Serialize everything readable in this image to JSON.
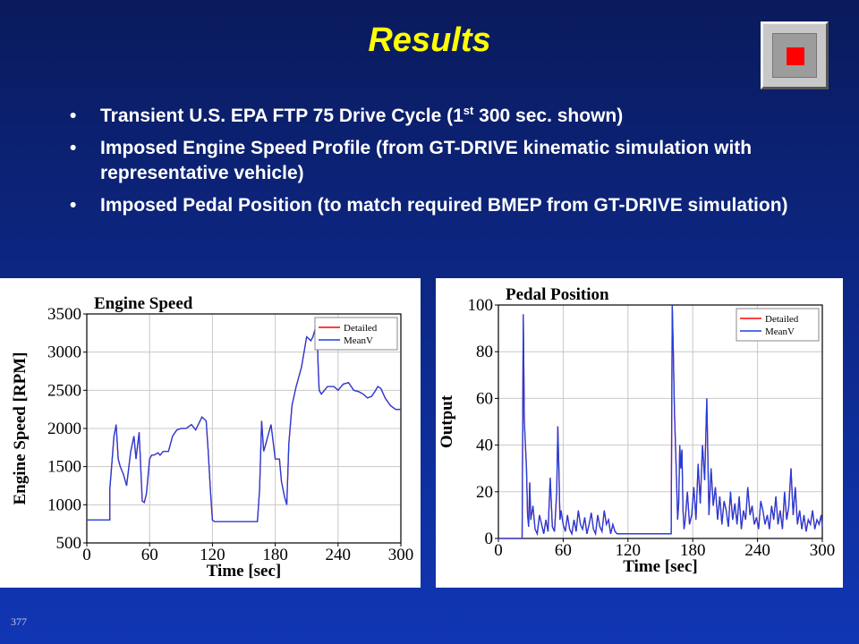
{
  "slide": {
    "title": "Results",
    "page_number": "377",
    "bullets": [
      {
        "pre": "Transient U.S. EPA FTP 75 Drive Cycle (1",
        "sup": "st",
        "post": " 300 sec. shown)"
      },
      {
        "pre": "Imposed Engine Speed Profile (from GT-DRIVE kinematic simulation with representative vehicle)",
        "sup": "",
        "post": ""
      },
      {
        "pre": "Imposed Pedal Position (to match required BMEP from GT-DRIVE simulation)",
        "sup": "",
        "post": ""
      }
    ]
  },
  "nav": {
    "icon": "stop-icon",
    "accent": "#ff0000"
  },
  "chart_data": [
    {
      "type": "line",
      "title": "Engine Speed",
      "xlabel": "Time [sec]",
      "ylabel": "Engine Speed [RPM]",
      "xlim": [
        0,
        300
      ],
      "ylim": [
        500,
        3500
      ],
      "xticks": [
        0,
        60,
        120,
        180,
        240,
        300
      ],
      "yticks": [
        500,
        1000,
        1500,
        2000,
        2500,
        3000,
        3500
      ],
      "grid": true,
      "legend": "top-right",
      "series": [
        {
          "name": "Detailed",
          "color": "#ff0000",
          "x": [
            0,
            22,
            22,
            26,
            28,
            30,
            32,
            35,
            38,
            42,
            45,
            47,
            50,
            53,
            55,
            57,
            60,
            62,
            64,
            68,
            70,
            73,
            78,
            82,
            86,
            90,
            95,
            100,
            104,
            110,
            114,
            116,
            118,
            120,
            122,
            125,
            128,
            132,
            140,
            150,
            158,
            163,
            165,
            167,
            169,
            171,
            173,
            176,
            180,
            184,
            186,
            189,
            191,
            193,
            196,
            200,
            205,
            210,
            214,
            216,
            218,
            220,
            221,
            222,
            224,
            230,
            236,
            240,
            245,
            250,
            255,
            260,
            264,
            268,
            272,
            275,
            278,
            281,
            285,
            290,
            295,
            300
          ],
          "values": [
            800,
            800,
            1200,
            1900,
            2050,
            1600,
            1500,
            1400,
            1250,
            1700,
            1900,
            1600,
            1950,
            1050,
            1030,
            1150,
            1600,
            1650,
            1650,
            1680,
            1650,
            1700,
            1700,
            1900,
            1980,
            2000,
            2000,
            2050,
            1980,
            2150,
            2100,
            1700,
            1200,
            800,
            780,
            780,
            780,
            780,
            780,
            780,
            780,
            780,
            1200,
            2100,
            1700,
            1800,
            1900,
            2050,
            1600,
            1600,
            1300,
            1100,
            1000,
            1800,
            2300,
            2550,
            2800,
            3200,
            3150,
            3200,
            3300,
            3300,
            2800,
            2500,
            2450,
            2550,
            2550,
            2500,
            2580,
            2600,
            2500,
            2480,
            2450,
            2400,
            2420,
            2480,
            2550,
            2520,
            2400,
            2300,
            2250,
            2250
          ]
        },
        {
          "name": "MeanV",
          "color": "#1f3fe0",
          "x": [
            0,
            22,
            22,
            26,
            28,
            30,
            32,
            35,
            38,
            42,
            45,
            47,
            50,
            53,
            55,
            57,
            60,
            62,
            64,
            68,
            70,
            73,
            78,
            82,
            86,
            90,
            95,
            100,
            104,
            110,
            114,
            116,
            118,
            120,
            122,
            125,
            128,
            132,
            140,
            150,
            158,
            163,
            165,
            167,
            169,
            171,
            173,
            176,
            180,
            184,
            186,
            189,
            191,
            193,
            196,
            200,
            205,
            210,
            214,
            216,
            218,
            220,
            221,
            222,
            224,
            230,
            236,
            240,
            245,
            250,
            255,
            260,
            264,
            268,
            272,
            275,
            278,
            281,
            285,
            290,
            295,
            300
          ],
          "values": [
            800,
            800,
            1200,
            1900,
            2050,
            1600,
            1500,
            1400,
            1250,
            1700,
            1900,
            1600,
            1950,
            1050,
            1030,
            1150,
            1600,
            1650,
            1650,
            1680,
            1650,
            1700,
            1700,
            1900,
            1980,
            2000,
            2000,
            2050,
            1980,
            2150,
            2100,
            1700,
            1200,
            800,
            780,
            780,
            780,
            780,
            780,
            780,
            780,
            780,
            1200,
            2100,
            1700,
            1800,
            1900,
            2050,
            1600,
            1600,
            1300,
            1100,
            1000,
            1800,
            2300,
            2550,
            2800,
            3200,
            3150,
            3200,
            3300,
            3300,
            2800,
            2500,
            2450,
            2550,
            2550,
            2500,
            2580,
            2600,
            2500,
            2480,
            2450,
            2400,
            2420,
            2480,
            2550,
            2520,
            2400,
            2300,
            2250,
            2250
          ]
        }
      ]
    },
    {
      "type": "line",
      "title": "Pedal Position",
      "xlabel": "Time [sec]",
      "ylabel": "Output",
      "xlim": [
        0,
        300
      ],
      "ylim": [
        0,
        100
      ],
      "xticks": [
        0,
        60,
        120,
        180,
        240,
        300
      ],
      "yticks": [
        0,
        20,
        40,
        60,
        80,
        100
      ],
      "grid": true,
      "legend": "top-right",
      "series": [
        {
          "name": "Detailed",
          "color": "#ff0000",
          "x": [
            0,
            22,
            23,
            24,
            25,
            26,
            27,
            28,
            29,
            30,
            32,
            34,
            36,
            38,
            40,
            42,
            44,
            46,
            48,
            50,
            52,
            54,
            55,
            56,
            57,
            58,
            60,
            62,
            64,
            66,
            68,
            70,
            72,
            74,
            76,
            78,
            80,
            82,
            84,
            86,
            88,
            90,
            92,
            94,
            96,
            98,
            100,
            102,
            104,
            106,
            108,
            110,
            160,
            161,
            162,
            163,
            164,
            165,
            166,
            167,
            168,
            169,
            170,
            171,
            172,
            173,
            175,
            177,
            179,
            181,
            183,
            185,
            187,
            189,
            191,
            193,
            195,
            197,
            199,
            201,
            203,
            205,
            207,
            209,
            211,
            213,
            215,
            217,
            219,
            221,
            223,
            225,
            227,
            229,
            231,
            233,
            235,
            237,
            239,
            241,
            243,
            245,
            247,
            249,
            251,
            253,
            255,
            257,
            259,
            261,
            263,
            265,
            267,
            269,
            271,
            273,
            275,
            277,
            279,
            281,
            283,
            285,
            287,
            289,
            291,
            293,
            295,
            297,
            299,
            300
          ],
          "values": [
            0,
            0,
            96,
            50,
            40,
            30,
            10,
            5,
            24,
            8,
            14,
            4,
            2,
            10,
            6,
            2,
            8,
            3,
            26,
            5,
            3,
            20,
            48,
            30,
            8,
            12,
            6,
            3,
            10,
            4,
            2,
            8,
            3,
            12,
            6,
            4,
            9,
            2,
            6,
            11,
            4,
            2,
            10,
            5,
            3,
            12,
            6,
            8,
            2,
            6,
            3,
            2,
            2,
            100,
            80,
            55,
            40,
            25,
            8,
            15,
            40,
            30,
            38,
            12,
            4,
            8,
            20,
            6,
            10,
            22,
            8,
            32,
            15,
            40,
            25,
            60,
            10,
            30,
            14,
            22,
            8,
            18,
            6,
            16,
            12,
            5,
            20,
            8,
            15,
            6,
            18,
            4,
            12,
            8,
            22,
            10,
            14,
            6,
            9,
            4,
            16,
            12,
            6,
            10,
            4,
            14,
            8,
            18,
            6,
            12,
            4,
            20,
            8,
            14,
            30,
            10,
            22,
            6,
            12,
            4,
            10,
            3,
            8,
            6,
            12,
            4,
            8,
            6,
            10,
            5
          ]
        },
        {
          "name": "MeanV",
          "color": "#1f3fe0",
          "x": [
            0,
            22,
            23,
            24,
            25,
            26,
            27,
            28,
            29,
            30,
            32,
            34,
            36,
            38,
            40,
            42,
            44,
            46,
            48,
            50,
            52,
            54,
            55,
            56,
            57,
            58,
            60,
            62,
            64,
            66,
            68,
            70,
            72,
            74,
            76,
            78,
            80,
            82,
            84,
            86,
            88,
            90,
            92,
            94,
            96,
            98,
            100,
            102,
            104,
            106,
            108,
            110,
            160,
            161,
            162,
            163,
            164,
            165,
            166,
            167,
            168,
            169,
            170,
            171,
            172,
            173,
            175,
            177,
            179,
            181,
            183,
            185,
            187,
            189,
            191,
            193,
            195,
            197,
            199,
            201,
            203,
            205,
            207,
            209,
            211,
            213,
            215,
            217,
            219,
            221,
            223,
            225,
            227,
            229,
            231,
            233,
            235,
            237,
            239,
            241,
            243,
            245,
            247,
            249,
            251,
            253,
            255,
            257,
            259,
            261,
            263,
            265,
            267,
            269,
            271,
            273,
            275,
            277,
            279,
            281,
            283,
            285,
            287,
            289,
            291,
            293,
            295,
            297,
            299,
            300
          ],
          "values": [
            0,
            0,
            96,
            50,
            40,
            30,
            10,
            5,
            24,
            8,
            14,
            4,
            2,
            10,
            6,
            2,
            8,
            3,
            26,
            5,
            3,
            20,
            48,
            30,
            8,
            12,
            6,
            3,
            10,
            4,
            2,
            8,
            3,
            12,
            6,
            4,
            9,
            2,
            6,
            11,
            4,
            2,
            10,
            5,
            3,
            12,
            6,
            8,
            2,
            6,
            3,
            2,
            2,
            100,
            80,
            55,
            40,
            25,
            8,
            15,
            40,
            30,
            38,
            12,
            4,
            8,
            20,
            6,
            10,
            22,
            8,
            32,
            15,
            40,
            25,
            60,
            10,
            30,
            14,
            22,
            8,
            18,
            6,
            16,
            12,
            5,
            20,
            8,
            15,
            6,
            18,
            4,
            12,
            8,
            22,
            10,
            14,
            6,
            9,
            4,
            16,
            12,
            6,
            10,
            4,
            14,
            8,
            18,
            6,
            12,
            4,
            20,
            8,
            14,
            30,
            10,
            22,
            6,
            12,
            4,
            10,
            3,
            8,
            6,
            12,
            4,
            8,
            6,
            10,
            5
          ]
        }
      ]
    }
  ]
}
